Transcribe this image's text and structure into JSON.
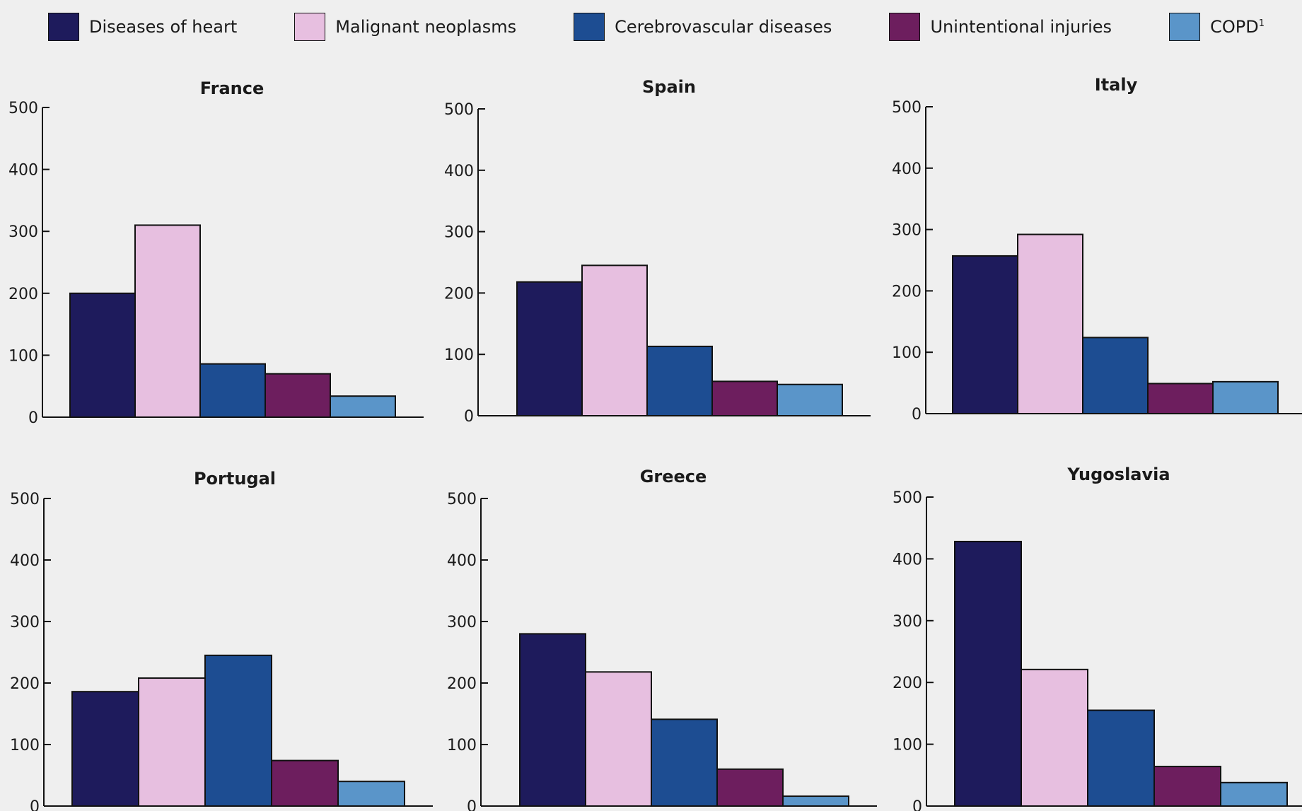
{
  "legend": {
    "items": [
      {
        "label": "Diseases of heart",
        "color": "#1e1b5c"
      },
      {
        "label": "Malignant neoplasms",
        "color": "#e7bfe0"
      },
      {
        "label": "Cerebrovascular diseases",
        "color": "#1d4d92"
      },
      {
        "label": "Unintentional injuries",
        "color": "#6d1e5e"
      },
      {
        "label": "COPD",
        "sup": "1",
        "color": "#5a95c9"
      }
    ]
  },
  "chart_data": [
    {
      "type": "bar",
      "title": "France",
      "categories": [
        "Diseases of heart",
        "Malignant neoplasms",
        "Cerebrovascular diseases",
        "Unintentional injuries",
        "COPD"
      ],
      "values": [
        200,
        310,
        86,
        70,
        34
      ],
      "ylim": [
        0,
        500
      ],
      "yticks": [
        0,
        100,
        200,
        300,
        400,
        500
      ]
    },
    {
      "type": "bar",
      "title": "Spain",
      "categories": [
        "Diseases of heart",
        "Malignant neoplasms",
        "Cerebrovascular diseases",
        "Unintentional injuries",
        "COPD"
      ],
      "values": [
        218,
        245,
        113,
        56,
        51
      ],
      "ylim": [
        0,
        500
      ],
      "yticks": [
        0,
        100,
        200,
        300,
        400,
        500
      ]
    },
    {
      "type": "bar",
      "title": "Italy",
      "categories": [
        "Diseases of heart",
        "Malignant neoplasms",
        "Cerebrovascular diseases",
        "Unintentional injuries",
        "COPD"
      ],
      "values": [
        257,
        292,
        124,
        49,
        52
      ],
      "ylim": [
        0,
        500
      ],
      "yticks": [
        0,
        100,
        200,
        300,
        400,
        500
      ]
    },
    {
      "type": "bar",
      "title": "Portugal",
      "categories": [
        "Diseases of heart",
        "Malignant neoplasms",
        "Cerebrovascular diseases",
        "Unintentional injuries",
        "COPD"
      ],
      "values": [
        186,
        208,
        245,
        74,
        40
      ],
      "ylim": [
        0,
        500
      ],
      "yticks": [
        0,
        100,
        200,
        300,
        400,
        500
      ]
    },
    {
      "type": "bar",
      "title": "Greece",
      "categories": [
        "Diseases of heart",
        "Malignant neoplasms",
        "Cerebrovascular diseases",
        "Unintentional injuries",
        "COPD"
      ],
      "values": [
        280,
        218,
        141,
        60,
        16
      ],
      "ylim": [
        0,
        500
      ],
      "yticks": [
        0,
        100,
        200,
        300,
        400,
        500
      ]
    },
    {
      "type": "bar",
      "title": "Yugoslavia",
      "categories": [
        "Diseases of heart",
        "Malignant neoplasms",
        "Cerebrovascular diseases",
        "Unintentional injuries",
        "COPD"
      ],
      "values": [
        428,
        221,
        155,
        64,
        38
      ],
      "ylim": [
        0,
        500
      ],
      "yticks": [
        0,
        100,
        200,
        300,
        400,
        500
      ]
    }
  ]
}
